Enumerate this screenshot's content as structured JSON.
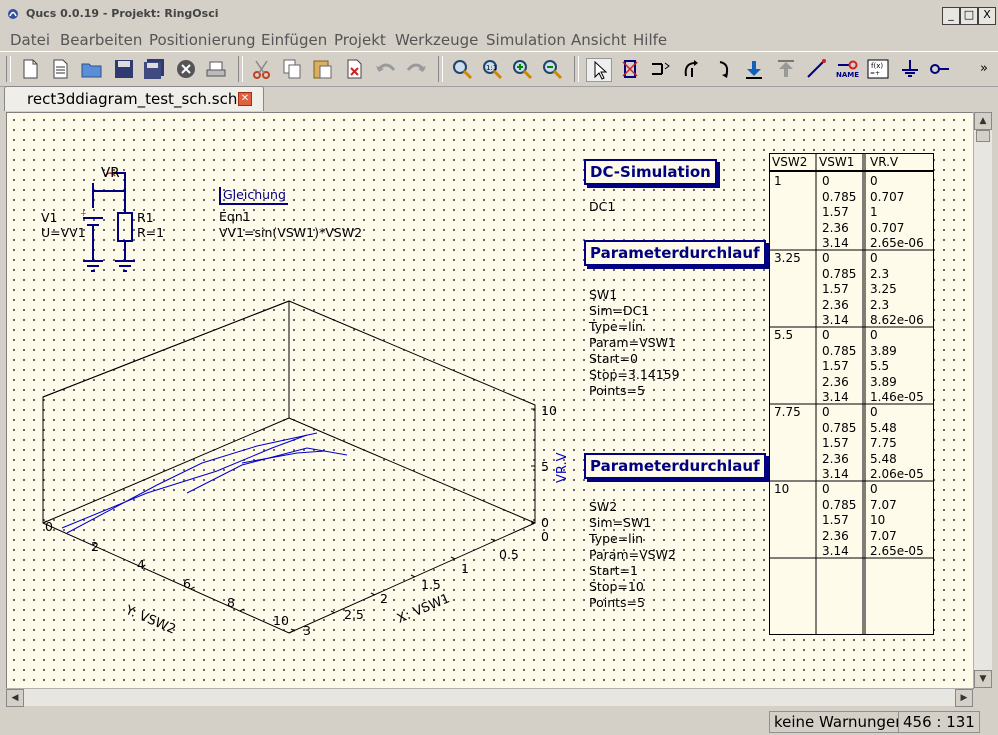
{
  "window": {
    "title": "Qucs 0.0.19 - Projekt: RingOsci",
    "buttons": {
      "minimize": "_",
      "maximize": "□",
      "close": "X"
    }
  },
  "menu": [
    "Datei",
    "Bearbeiten",
    "Positionierung",
    "Einfügen",
    "Projekt",
    "Werkzeuge",
    "Simulation",
    "Ansicht",
    "Hilfe"
  ],
  "toolbar": {
    "icons": [
      "new-file-icon",
      "new-text-icon",
      "open-folder-icon",
      "save-icon",
      "save-all-icon",
      "close-file-icon",
      "print-icon",
      "cut-icon",
      "copy-icon",
      "paste-icon",
      "delete-icon",
      "undo-icon",
      "redo-icon",
      "zoom-fit-icon",
      "zoom-1to1-icon",
      "zoom-in-icon",
      "zoom-out-icon",
      "select-icon",
      "deactivate-icon",
      "mirror-icon",
      "rotate-icon",
      "rotate-right-icon",
      "enter-subcircuit-icon",
      "leave-subcircuit-icon",
      "wire-icon",
      "label-icon",
      "equation-icon",
      "ground-icon",
      "port-icon"
    ],
    "name_label": "NAME",
    "overflow": "»"
  },
  "tab": {
    "label": "rect3ddiagram_test_sch.sch"
  },
  "schematic": {
    "probe": {
      "name": "VR"
    },
    "v1": {
      "name": "V1",
      "value": "U=VV1"
    },
    "r1": {
      "name": "R1",
      "value": "R=1"
    },
    "equation": {
      "header": "Gleichung",
      "name": "Eqn1",
      "expr": "VV1=sin(VSW1)*VSW2"
    },
    "dc": {
      "header": "DC-Simulation",
      "name": "DC1"
    },
    "sw1": {
      "header": "Parameterdurchlauf",
      "lines": [
        "SW1",
        "Sim=DC1",
        "Type=lin",
        "Param=VSW1",
        "Start=0",
        "Stop=3.14159",
        "Points=5"
      ]
    },
    "sw2": {
      "header": "Parameterdurchlauf",
      "lines": [
        "SW2",
        "Sim=SW1",
        "Type=lin",
        "Param=VSW2",
        "Start=1",
        "Stop=10",
        "Points=5"
      ]
    },
    "diagram3d": {
      "y_axis_label": "Y: VSW2",
      "x_axis_label": "X: VSW1",
      "z_axis_label": "VR.V",
      "y_ticks": [
        "0",
        "2",
        "4",
        "6",
        "8",
        "10"
      ],
      "x_ticks": [
        "0",
        "0.5",
        "1",
        "1.5",
        "2",
        "2.5",
        "3"
      ],
      "z_ticks": [
        "0",
        "5",
        "10"
      ],
      "curve_color": "#0000cc"
    },
    "table": {
      "headers": [
        "VSW2",
        "VSW1",
        "VR.V"
      ],
      "groups": [
        {
          "vsw2": "1",
          "vsw1": [
            "0",
            "0.785",
            "1.57",
            "2.36",
            "3.14"
          ],
          "vr": [
            "0",
            "0.707",
            "1",
            "0.707",
            "2.65e-06"
          ]
        },
        {
          "vsw2": "3.25",
          "vsw1": [
            "0",
            "0.785",
            "1.57",
            "2.36",
            "3.14"
          ],
          "vr": [
            "0",
            "2.3",
            "3.25",
            "2.3",
            "8.62e-06"
          ]
        },
        {
          "vsw2": "5.5",
          "vsw1": [
            "0",
            "0.785",
            "1.57",
            "2.36",
            "3.14"
          ],
          "vr": [
            "0",
            "3.89",
            "5.5",
            "3.89",
            "1.46e-05"
          ]
        },
        {
          "vsw2": "7.75",
          "vsw1": [
            "0",
            "0.785",
            "1.57",
            "2.36",
            "3.14"
          ],
          "vr": [
            "0",
            "5.48",
            "7.75",
            "5.48",
            "2.06e-05"
          ]
        },
        {
          "vsw2": "10",
          "vsw1": [
            "0",
            "0.785",
            "1.57",
            "2.36",
            "3.14"
          ],
          "vr": [
            "0",
            "7.07",
            "10",
            "7.07",
            "2.65e-05"
          ]
        }
      ]
    }
  },
  "status": {
    "warnings": "keine Warnungen",
    "coords": "456 : 131"
  },
  "colors": {
    "canvas_bg": "#fffbeb",
    "component": "#000080",
    "wire": "#000080",
    "grid_dot": "#4a4a4a"
  }
}
